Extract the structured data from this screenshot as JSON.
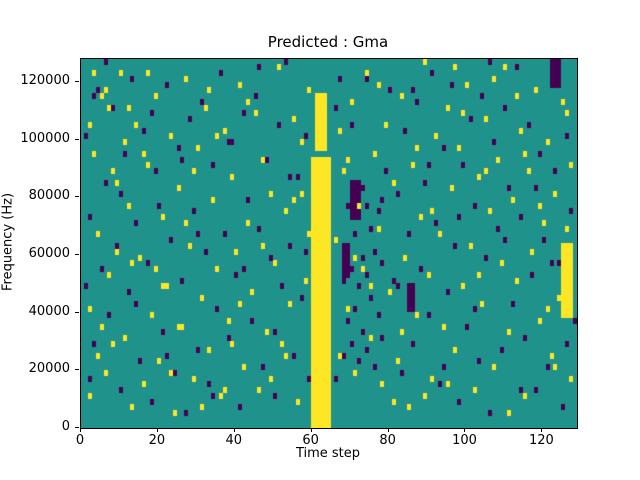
{
  "chart_data": {
    "type": "heatmap",
    "title": "Predicted : Gma",
    "xlabel": "Time step",
    "ylabel": "Frequency (Hz)",
    "x_range": [
      0,
      129
    ],
    "y_range": [
      0,
      128000
    ],
    "grid": {
      "cols": 129,
      "rows": 64,
      "hz_per_row": 2000
    },
    "colors": {
      "background": "#20928c",
      "high": "#fde725",
      "low": "#440154"
    },
    "xticks": [
      0,
      20,
      40,
      60,
      80,
      100,
      120
    ],
    "yticks": [
      0,
      20000,
      40000,
      60000,
      80000,
      100000,
      120000
    ],
    "legend": "none",
    "grid_lines": "off",
    "regions": [
      {
        "value": "high",
        "x0": 60,
        "x1": 65,
        "row0": 0,
        "row1": 46
      },
      {
        "value": "high",
        "x0": 61,
        "x1": 64,
        "row0": 48,
        "row1": 57
      },
      {
        "value": "low",
        "x0": 70,
        "x1": 73,
        "row0": 36,
        "row1": 42
      },
      {
        "value": "low",
        "x0": 68,
        "x1": 70,
        "row0": 26,
        "row1": 31
      },
      {
        "value": "high",
        "x0": 125,
        "x1": 128,
        "row0": 19,
        "row1": 31
      },
      {
        "value": "low",
        "x0": 85,
        "x1": 87,
        "row0": 20,
        "row1": 24
      },
      {
        "value": "low",
        "x0": 122,
        "x1": 125,
        "row0": 59,
        "row1": 63
      }
    ],
    "yellow_cells": [
      [
        2,
        5
      ],
      [
        2,
        20
      ],
      [
        2,
        52
      ],
      [
        3,
        47
      ],
      [
        4,
        12
      ],
      [
        4,
        33
      ],
      [
        5,
        57
      ],
      [
        6,
        58
      ],
      [
        6,
        9
      ],
      [
        7,
        26
      ],
      [
        8,
        44
      ],
      [
        8,
        14
      ],
      [
        9,
        30
      ],
      [
        10,
        61
      ],
      [
        11,
        15
      ],
      [
        12,
        38
      ],
      [
        12,
        55
      ],
      [
        13,
        3
      ],
      [
        14,
        52
      ],
      [
        15,
        29
      ],
      [
        16,
        7
      ],
      [
        16,
        47
      ],
      [
        17,
        45
      ],
      [
        18,
        19
      ],
      [
        19,
        57
      ],
      [
        20,
        11
      ],
      [
        21,
        36
      ],
      [
        21,
        24
      ],
      [
        22,
        24
      ],
      [
        23,
        50
      ],
      [
        24,
        2
      ],
      [
        25,
        41
      ],
      [
        25,
        17
      ],
      [
        26,
        17
      ],
      [
        27,
        60
      ],
      [
        28,
        31
      ],
      [
        29,
        8
      ],
      [
        30,
        48
      ],
      [
        31,
        22
      ],
      [
        32,
        55
      ],
      [
        33,
        13
      ],
      [
        34,
        39
      ],
      [
        35,
        27
      ],
      [
        36,
        5
      ],
      [
        37,
        51
      ],
      [
        38,
        18
      ],
      [
        39,
        43
      ],
      [
        40,
        30
      ],
      [
        41,
        59
      ],
      [
        42,
        10
      ],
      [
        43,
        35
      ],
      [
        44,
        23
      ],
      [
        45,
        54
      ],
      [
        46,
        6
      ],
      [
        47,
        46
      ],
      [
        48,
        16
      ],
      [
        49,
        40
      ],
      [
        50,
        28
      ],
      [
        51,
        62
      ],
      [
        52,
        14
      ],
      [
        53,
        37
      ],
      [
        54,
        21
      ],
      [
        55,
        53
      ],
      [
        56,
        4
      ],
      [
        57,
        49
      ],
      [
        58,
        25
      ],
      [
        59,
        58
      ],
      [
        59,
        33
      ],
      [
        66,
        32
      ],
      [
        67,
        12
      ],
      [
        68,
        44
      ],
      [
        69,
        20
      ],
      [
        70,
        56
      ],
      [
        71,
        9
      ],
      [
        72,
        38
      ],
      [
        73,
        27
      ],
      [
        74,
        61
      ],
      [
        75,
        15
      ],
      [
        76,
        47
      ],
      [
        77,
        34
      ],
      [
        78,
        7
      ],
      [
        79,
        52
      ],
      [
        80,
        23
      ],
      [
        81,
        42
      ],
      [
        82,
        11
      ],
      [
        83,
        57
      ],
      [
        84,
        29
      ],
      [
        85,
        3
      ],
      [
        86,
        45
      ],
      [
        87,
        19
      ],
      [
        88,
        36
      ],
      [
        89,
        63
      ],
      [
        90,
        26
      ],
      [
        91,
        8
      ],
      [
        92,
        50
      ],
      [
        93,
        33
      ],
      [
        94,
        17
      ],
      [
        95,
        55
      ],
      [
        96,
        41
      ],
      [
        97,
        13
      ],
      [
        98,
        48
      ],
      [
        99,
        24
      ],
      [
        100,
        59
      ],
      [
        101,
        31
      ],
      [
        102,
        6
      ],
      [
        103,
        43
      ],
      [
        104,
        21
      ],
      [
        105,
        53
      ],
      [
        106,
        37
      ],
      [
        107,
        10
      ],
      [
        108,
        46
      ],
      [
        109,
        28
      ],
      [
        110,
        62
      ],
      [
        111,
        16
      ],
      [
        112,
        39
      ],
      [
        113,
        25
      ],
      [
        114,
        51
      ],
      [
        115,
        5
      ],
      [
        116,
        44
      ],
      [
        117,
        30
      ],
      [
        118,
        58
      ],
      [
        119,
        18
      ],
      [
        120,
        35
      ],
      [
        121,
        49
      ],
      [
        122,
        12
      ],
      [
        123,
        40
      ],
      [
        124,
        22
      ],
      [
        125,
        56
      ],
      [
        126,
        34
      ],
      [
        127,
        8
      ],
      [
        127,
        45
      ],
      [
        3,
        61
      ],
      [
        7,
        55
      ],
      [
        11,
        49
      ],
      [
        19,
        27
      ],
      [
        23,
        9
      ],
      [
        29,
        44
      ],
      [
        33,
        58
      ],
      [
        37,
        6
      ],
      [
        41,
        21
      ],
      [
        47,
        31
      ],
      [
        53,
        12
      ],
      [
        57,
        40
      ],
      [
        67,
        51
      ],
      [
        71,
        29
      ],
      [
        77,
        59
      ],
      [
        81,
        4
      ],
      [
        87,
        48
      ],
      [
        91,
        37
      ],
      [
        95,
        7
      ],
      [
        99,
        54
      ],
      [
        103,
        26
      ],
      [
        107,
        60
      ],
      [
        111,
        2
      ],
      [
        115,
        47
      ],
      [
        119,
        38
      ],
      [
        123,
        10
      ],
      [
        126,
        54
      ],
      [
        5,
        17
      ],
      [
        9,
        42
      ],
      [
        13,
        28
      ],
      [
        17,
        61
      ],
      [
        27,
        35
      ],
      [
        31,
        3
      ],
      [
        35,
        50
      ],
      [
        39,
        14
      ],
      [
        43,
        56
      ],
      [
        49,
        8
      ],
      [
        55,
        39
      ],
      [
        69,
        46
      ],
      [
        75,
        24
      ],
      [
        83,
        16
      ],
      [
        89,
        5
      ],
      [
        97,
        62
      ],
      [
        105,
        44
      ],
      [
        113,
        57
      ],
      [
        121,
        20
      ]
    ],
    "purple_cells": [
      [
        1,
        50
      ],
      [
        1,
        24
      ],
      [
        2,
        36
      ],
      [
        3,
        14
      ],
      [
        3,
        57
      ],
      [
        4,
        58
      ],
      [
        5,
        27
      ],
      [
        6,
        42
      ],
      [
        7,
        19
      ],
      [
        8,
        55
      ],
      [
        9,
        31
      ],
      [
        10,
        6
      ],
      [
        11,
        47
      ],
      [
        12,
        23
      ],
      [
        13,
        60
      ],
      [
        14,
        35
      ],
      [
        15,
        11
      ],
      [
        16,
        51
      ],
      [
        17,
        28
      ],
      [
        18,
        4
      ],
      [
        19,
        44
      ],
      [
        20,
        38
      ],
      [
        21,
        16
      ],
      [
        22,
        59
      ],
      [
        23,
        32
      ],
      [
        24,
        9
      ],
      [
        25,
        48
      ],
      [
        26,
        25
      ],
      [
        27,
        2
      ],
      [
        28,
        53
      ],
      [
        29,
        37
      ],
      [
        30,
        13
      ],
      [
        31,
        56
      ],
      [
        32,
        30
      ],
      [
        33,
        7
      ],
      [
        34,
        45
      ],
      [
        35,
        20
      ],
      [
        36,
        61
      ],
      [
        37,
        33
      ],
      [
        38,
        15
      ],
      [
        39,
        49
      ],
      [
        40,
        26
      ],
      [
        41,
        3
      ],
      [
        42,
        54
      ],
      [
        43,
        39
      ],
      [
        44,
        18
      ],
      [
        45,
        57
      ],
      [
        46,
        34
      ],
      [
        47,
        10
      ],
      [
        48,
        46
      ],
      [
        49,
        29
      ],
      [
        50,
        5
      ],
      [
        51,
        52
      ],
      [
        52,
        24
      ],
      [
        53,
        63
      ],
      [
        54,
        31
      ],
      [
        55,
        12
      ],
      [
        56,
        43
      ],
      [
        57,
        22
      ],
      [
        58,
        50
      ],
      [
        59,
        8
      ],
      [
        66,
        55
      ],
      [
        67,
        60
      ],
      [
        68,
        12
      ],
      [
        68,
        25
      ],
      [
        69,
        18
      ],
      [
        69,
        30
      ],
      [
        69,
        38
      ],
      [
        70,
        14
      ],
      [
        70,
        27
      ],
      [
        70,
        40
      ],
      [
        71,
        20
      ],
      [
        71,
        33
      ],
      [
        72,
        11
      ],
      [
        72,
        24
      ],
      [
        72,
        36
      ],
      [
        73,
        16
      ],
      [
        73,
        29
      ],
      [
        73,
        41
      ],
      [
        74,
        13
      ],
      [
        74,
        26
      ],
      [
        74,
        38
      ],
      [
        75,
        22
      ],
      [
        75,
        34
      ],
      [
        76,
        10
      ],
      [
        76,
        30
      ],
      [
        77,
        19
      ],
      [
        77,
        37
      ],
      [
        78,
        15
      ],
      [
        78,
        28
      ],
      [
        79,
        44
      ],
      [
        80,
        58
      ],
      [
        81,
        25
      ],
      [
        82,
        40
      ],
      [
        83,
        9
      ],
      [
        84,
        51
      ],
      [
        85,
        33
      ],
      [
        86,
        14
      ],
      [
        87,
        56
      ],
      [
        88,
        27
      ],
      [
        89,
        42
      ],
      [
        90,
        19
      ],
      [
        91,
        61
      ],
      [
        92,
        35
      ],
      [
        93,
        7
      ],
      [
        94,
        48
      ],
      [
        95,
        23
      ],
      [
        96,
        59
      ],
      [
        97,
        31
      ],
      [
        98,
        4
      ],
      [
        99,
        45
      ],
      [
        100,
        17
      ],
      [
        101,
        53
      ],
      [
        102,
        38
      ],
      [
        103,
        11
      ],
      [
        104,
        57
      ],
      [
        105,
        29
      ],
      [
        106,
        2
      ],
      [
        107,
        49
      ],
      [
        108,
        34
      ],
      [
        109,
        13
      ],
      [
        110,
        55
      ],
      [
        111,
        41
      ],
      [
        112,
        21
      ],
      [
        113,
        62
      ],
      [
        114,
        36
      ],
      [
        115,
        15
      ],
      [
        116,
        52
      ],
      [
        117,
        26
      ],
      [
        118,
        6
      ],
      [
        119,
        47
      ],
      [
        120,
        32
      ],
      [
        121,
        10
      ],
      [
        122,
        60
      ],
      [
        122,
        62
      ],
      [
        123,
        44
      ],
      [
        124,
        28
      ],
      [
        125,
        3
      ],
      [
        126,
        50
      ],
      [
        127,
        37
      ],
      [
        128,
        18
      ],
      [
        2,
        8
      ],
      [
        6,
        63
      ],
      [
        10,
        40
      ],
      [
        14,
        21
      ],
      [
        18,
        54
      ],
      [
        22,
        12
      ],
      [
        26,
        46
      ],
      [
        30,
        33
      ],
      [
        34,
        5
      ],
      [
        38,
        49
      ],
      [
        42,
        27
      ],
      [
        46,
        62
      ],
      [
        50,
        16
      ],
      [
        54,
        43
      ],
      [
        58,
        30
      ],
      [
        66,
        8
      ],
      [
        70,
        52
      ],
      [
        74,
        60
      ],
      [
        78,
        39
      ],
      [
        82,
        24
      ],
      [
        86,
        58
      ],
      [
        90,
        45
      ],
      [
        94,
        10
      ],
      [
        98,
        36
      ],
      [
        102,
        20
      ],
      [
        106,
        63
      ],
      [
        110,
        32
      ],
      [
        114,
        6
      ],
      [
        118,
        41
      ],
      [
        122,
        28
      ],
      [
        126,
        14
      ]
    ]
  }
}
